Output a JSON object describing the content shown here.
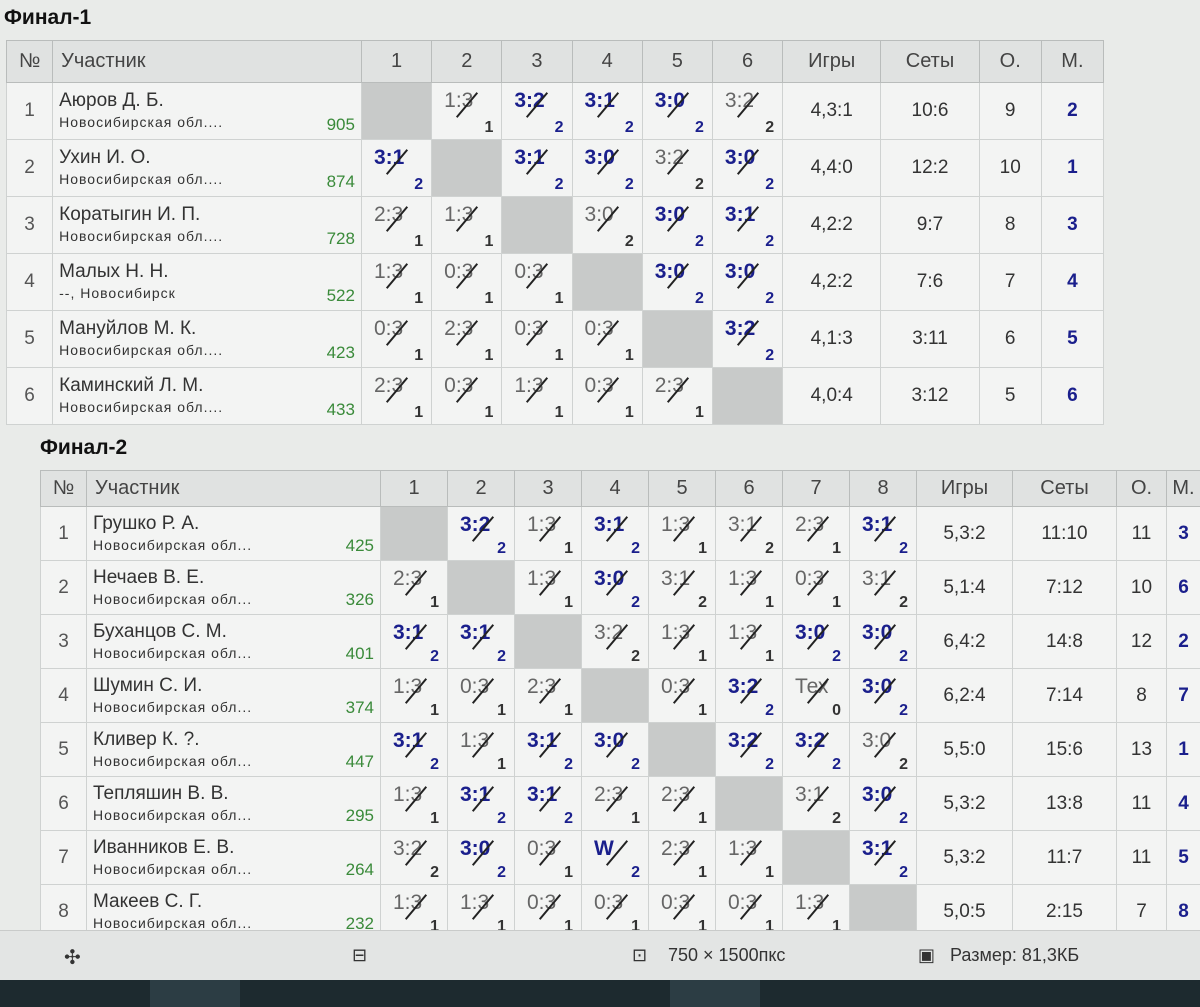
{
  "headers": {
    "num": "№",
    "participant": "Участник",
    "games": "Игры",
    "sets": "Сеты",
    "points": "О.",
    "place": "М."
  },
  "final1": {
    "title": "Финал-1",
    "columns": [
      "1",
      "2",
      "3",
      "4",
      "5",
      "6"
    ],
    "rows": [
      {
        "num": "1",
        "name": "Аюров Д. Б.",
        "region": "Новосибирская обл....",
        "rating": "905",
        "cells": [
          null,
          {
            "s": "1:3",
            "p": "1",
            "w": false
          },
          {
            "s": "3:2",
            "p": "2",
            "w": true
          },
          {
            "s": "3:1",
            "p": "2",
            "w": true
          },
          {
            "s": "3:0",
            "p": "2",
            "w": true
          },
          {
            "s": "3:2",
            "p": "2",
            "w": false
          }
        ],
        "games": "4,3:1",
        "sets": "10:6",
        "points": "9",
        "place": "2"
      },
      {
        "num": "2",
        "name": "Ухин И. О.",
        "region": "Новосибирская обл....",
        "rating": "874",
        "cells": [
          {
            "s": "3:1",
            "p": "2",
            "w": true
          },
          null,
          {
            "s": "3:1",
            "p": "2",
            "w": true
          },
          {
            "s": "3:0",
            "p": "2",
            "w": true
          },
          {
            "s": "3:2",
            "p": "2",
            "w": false
          },
          {
            "s": "3:0",
            "p": "2",
            "w": true
          }
        ],
        "games": "4,4:0",
        "sets": "12:2",
        "points": "10",
        "place": "1"
      },
      {
        "num": "3",
        "name": "Коратыгин И. П.",
        "region": "Новосибирская обл....",
        "rating": "728",
        "cells": [
          {
            "s": "2:3",
            "p": "1",
            "w": false
          },
          {
            "s": "1:3",
            "p": "1",
            "w": false
          },
          null,
          {
            "s": "3:0",
            "p": "2",
            "w": false
          },
          {
            "s": "3:0",
            "p": "2",
            "w": true
          },
          {
            "s": "3:1",
            "p": "2",
            "w": true
          }
        ],
        "games": "4,2:2",
        "sets": "9:7",
        "points": "8",
        "place": "3"
      },
      {
        "num": "4",
        "name": "Малых Н. Н.",
        "region": "--, Новосибирск",
        "rating": "522",
        "cells": [
          {
            "s": "1:3",
            "p": "1",
            "w": false
          },
          {
            "s": "0:3",
            "p": "1",
            "w": false
          },
          {
            "s": "0:3",
            "p": "1",
            "w": false
          },
          null,
          {
            "s": "3:0",
            "p": "2",
            "w": true
          },
          {
            "s": "3:0",
            "p": "2",
            "w": true
          }
        ],
        "games": "4,2:2",
        "sets": "7:6",
        "points": "7",
        "place": "4"
      },
      {
        "num": "5",
        "name": "Мануйлов М. К.",
        "region": "Новосибирская обл....",
        "rating": "423",
        "cells": [
          {
            "s": "0:3",
            "p": "1",
            "w": false
          },
          {
            "s": "2:3",
            "p": "1",
            "w": false
          },
          {
            "s": "0:3",
            "p": "1",
            "w": false
          },
          {
            "s": "0:3",
            "p": "1",
            "w": false
          },
          null,
          {
            "s": "3:2",
            "p": "2",
            "w": true
          }
        ],
        "games": "4,1:3",
        "sets": "3:11",
        "points": "6",
        "place": "5"
      },
      {
        "num": "6",
        "name": "Каминский Л. М.",
        "region": "Новосибирская обл....",
        "rating": "433",
        "cells": [
          {
            "s": "2:3",
            "p": "1",
            "w": false
          },
          {
            "s": "0:3",
            "p": "1",
            "w": false
          },
          {
            "s": "1:3",
            "p": "1",
            "w": false
          },
          {
            "s": "0:3",
            "p": "1",
            "w": false
          },
          {
            "s": "2:3",
            "p": "1",
            "w": false
          },
          null
        ],
        "games": "4,0:4",
        "sets": "3:12",
        "points": "5",
        "place": "6"
      }
    ]
  },
  "final2": {
    "title": "Финал-2",
    "columns": [
      "1",
      "2",
      "3",
      "4",
      "5",
      "6",
      "7",
      "8"
    ],
    "rows": [
      {
        "num": "1",
        "name": "Грушко Р. А.",
        "region": "Новосибирская обл...",
        "rating": "425",
        "cells": [
          null,
          {
            "s": "3:2",
            "p": "2",
            "w": true
          },
          {
            "s": "1:3",
            "p": "1",
            "w": false
          },
          {
            "s": "3:1",
            "p": "2",
            "w": true
          },
          {
            "s": "1:3",
            "p": "1",
            "w": false
          },
          {
            "s": "3:1",
            "p": "2",
            "w": false
          },
          {
            "s": "2:3",
            "p": "1",
            "w": false
          },
          {
            "s": "3:1",
            "p": "2",
            "w": true
          }
        ],
        "games": "5,3:2",
        "sets": "11:10",
        "points": "11",
        "place": "3"
      },
      {
        "num": "2",
        "name": "Нечаев В. Е.",
        "region": "Новосибирская обл...",
        "rating": "326",
        "cells": [
          {
            "s": "2:3",
            "p": "1",
            "w": false
          },
          null,
          {
            "s": "1:3",
            "p": "1",
            "w": false
          },
          {
            "s": "3:0",
            "p": "2",
            "w": true
          },
          {
            "s": "3:1",
            "p": "2",
            "w": false
          },
          {
            "s": "1:3",
            "p": "1",
            "w": false
          },
          {
            "s": "0:3",
            "p": "1",
            "w": false
          },
          {
            "s": "3:1",
            "p": "2",
            "w": false
          }
        ],
        "games": "5,1:4",
        "sets": "7:12",
        "points": "10",
        "place": "6"
      },
      {
        "num": "3",
        "name": "Буханцов С. М.",
        "region": "Новосибирская обл...",
        "rating": "401",
        "cells": [
          {
            "s": "3:1",
            "p": "2",
            "w": true
          },
          {
            "s": "3:1",
            "p": "2",
            "w": true
          },
          null,
          {
            "s": "3:2",
            "p": "2",
            "w": false
          },
          {
            "s": "1:3",
            "p": "1",
            "w": false
          },
          {
            "s": "1:3",
            "p": "1",
            "w": false
          },
          {
            "s": "3:0",
            "p": "2",
            "w": true
          },
          {
            "s": "3:0",
            "p": "2",
            "w": true
          }
        ],
        "games": "6,4:2",
        "sets": "14:8",
        "points": "12",
        "place": "2"
      },
      {
        "num": "4",
        "name": "Шумин С. И.",
        "region": "Новосибирская обл...",
        "rating": "374",
        "cells": [
          {
            "s": "1:3",
            "p": "1",
            "w": false
          },
          {
            "s": "0:3",
            "p": "1",
            "w": false
          },
          {
            "s": "2:3",
            "p": "1",
            "w": false
          },
          null,
          {
            "s": "0:3",
            "p": "1",
            "w": false
          },
          {
            "s": "3:2",
            "p": "2",
            "w": true
          },
          {
            "s": "Тех",
            "p": "0",
            "w": false
          },
          {
            "s": "3:0",
            "p": "2",
            "w": true
          }
        ],
        "games": "6,2:4",
        "sets": "7:14",
        "points": "8",
        "place": "7"
      },
      {
        "num": "5",
        "name": "Кливер К. ?.",
        "region": "Новосибирская обл...",
        "rating": "447",
        "cells": [
          {
            "s": "3:1",
            "p": "2",
            "w": true
          },
          {
            "s": "1:3",
            "p": "1",
            "w": false
          },
          {
            "s": "3:1",
            "p": "2",
            "w": true
          },
          {
            "s": "3:0",
            "p": "2",
            "w": true
          },
          null,
          {
            "s": "3:2",
            "p": "2",
            "w": true
          },
          {
            "s": "3:2",
            "p": "2",
            "w": true
          },
          {
            "s": "3:0",
            "p": "2",
            "w": false
          }
        ],
        "games": "5,5:0",
        "sets": "15:6",
        "points": "13",
        "place": "1"
      },
      {
        "num": "6",
        "name": "Тепляшин В. В.",
        "region": "Новосибирская обл...",
        "rating": "295",
        "cells": [
          {
            "s": "1:3",
            "p": "1",
            "w": false
          },
          {
            "s": "3:1",
            "p": "2",
            "w": true
          },
          {
            "s": "3:1",
            "p": "2",
            "w": true
          },
          {
            "s": "2:3",
            "p": "1",
            "w": false
          },
          {
            "s": "2:3",
            "p": "1",
            "w": false
          },
          null,
          {
            "s": "3:1",
            "p": "2",
            "w": false
          },
          {
            "s": "3:0",
            "p": "2",
            "w": true
          }
        ],
        "games": "5,3:2",
        "sets": "13:8",
        "points": "11",
        "place": "4"
      },
      {
        "num": "7",
        "name": "Иванников Е. В.",
        "region": "Новосибирская обл...",
        "rating": "264",
        "cells": [
          {
            "s": "3:2",
            "p": "2",
            "w": false
          },
          {
            "s": "3:0",
            "p": "2",
            "w": true
          },
          {
            "s": "0:3",
            "p": "1",
            "w": false
          },
          {
            "s": "W",
            "p": "2",
            "w": true
          },
          {
            "s": "2:3",
            "p": "1",
            "w": false
          },
          {
            "s": "1:3",
            "p": "1",
            "w": false
          },
          null,
          {
            "s": "3:1",
            "p": "2",
            "w": true
          }
        ],
        "games": "5,3:2",
        "sets": "11:7",
        "points": "11",
        "place": "5"
      },
      {
        "num": "8",
        "name": "Макеев С. Г.",
        "region": "Новосибирская обл...",
        "rating": "232",
        "cells": [
          {
            "s": "1:3",
            "p": "1",
            "w": false
          },
          {
            "s": "1:3",
            "p": "1",
            "w": false
          },
          {
            "s": "0:3",
            "p": "1",
            "w": false
          },
          {
            "s": "0:3",
            "p": "1",
            "w": false
          },
          {
            "s": "0:3",
            "p": "1",
            "w": false
          },
          {
            "s": "0:3",
            "p": "1",
            "w": false
          },
          {
            "s": "1:3",
            "p": "1",
            "w": false
          },
          null
        ],
        "games": "5,0:5",
        "sets": "2:15",
        "points": "7",
        "place": "8"
      }
    ]
  },
  "statusbar": {
    "dimensions": "750 × 1500пкс",
    "size": "Размер: 81,3КБ"
  }
}
